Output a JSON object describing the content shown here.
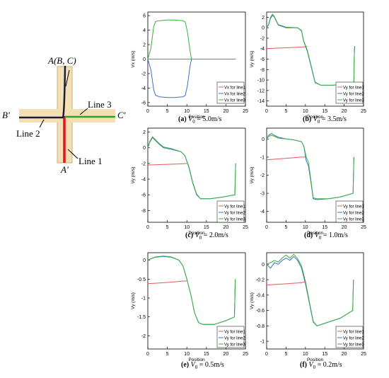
{
  "diagram": {
    "labels": {
      "top": "A(B, C)",
      "left": "B'",
      "right": "C'",
      "bottom": "A'",
      "line1": "Line 1",
      "line2": "Line 2",
      "line3": "Line 3"
    },
    "colors": {
      "channel": "#f2dfb4",
      "channel_border": "#c9b27d",
      "line1": "#e8141b",
      "line2": "#1b1b3a",
      "line3": "#2aa52a"
    }
  },
  "captions": [
    {
      "letter": "(a)",
      "v": "V",
      "sub": "0",
      "rest": " = 5.0m/s"
    },
    {
      "letter": "(b)",
      "v": "V",
      "sub": "0",
      "rest": " = 3.5m/s"
    },
    {
      "letter": "(c)",
      "v": "V",
      "sub": "0",
      "rest": " = 2.0m/s"
    },
    {
      "letter": "(d)",
      "v": "V",
      "sub": "0",
      "rest": " = 1.0m/s"
    },
    {
      "letter": "(e)",
      "v": "V",
      "sub": "0",
      "rest": " = 0.5m/s"
    },
    {
      "letter": "(f)",
      "v": "V",
      "sub": "0",
      "rest": " = 0.2m/s"
    }
  ],
  "series_colors": [
    "#e8585c",
    "#3a6fc9",
    "#3cae3c"
  ],
  "chart_data": [
    {
      "type": "line",
      "xlabel": "Position",
      "ylabel": "Vx (m/s)",
      "xlim": [
        0,
        25
      ],
      "ylim": [
        -6.5,
        6.5
      ],
      "xticks": [
        0,
        5,
        10,
        15,
        20,
        25
      ],
      "yticks": [
        -6,
        -4,
        -2,
        0,
        2,
        4,
        6
      ],
      "series": [
        {
          "name": "Vx for line1",
          "x": [
            0,
            22.5
          ],
          "y": [
            0,
            0
          ]
        },
        {
          "name": "Vx for line2",
          "x": [
            0,
            0.8,
            1.5,
            2,
            3,
            5,
            7,
            9,
            9.6,
            10.2,
            10.8,
            11.2
          ],
          "y": [
            0,
            -1.5,
            -4.2,
            -5.0,
            -5.2,
            -5.3,
            -5.3,
            -5.2,
            -5.0,
            -3.5,
            -1.0,
            0
          ]
        },
        {
          "name": "Vx for line3",
          "x": [
            0,
            0.8,
            1.5,
            2,
            3,
            5,
            7,
            9,
            9.6,
            10.2,
            10.8,
            11.2,
            22.5
          ],
          "y": [
            0,
            1.5,
            4.5,
            5.2,
            5.3,
            5.4,
            5.4,
            5.3,
            5.1,
            3.6,
            1.2,
            0,
            0
          ]
        }
      ]
    },
    {
      "type": "line",
      "xlabel": "Position",
      "ylabel": "Vy (m/s)",
      "xlim": [
        0,
        25
      ],
      "ylim": [
        -15,
        3
      ],
      "xticks": [
        0,
        5,
        10,
        15,
        20,
        25
      ],
      "yticks": [
        -14,
        -12,
        -10,
        -8,
        -6,
        -4,
        -2,
        0,
        2
      ],
      "series": [
        {
          "name": "Vy for line1",
          "x": [
            0,
            3,
            6,
            9,
            10.5
          ],
          "y": [
            -4.0,
            -3.9,
            -3.8,
            -3.7,
            -3.6
          ]
        },
        {
          "name": "Vy for line2",
          "x": [
            0,
            0.5,
            1,
            1.5,
            2,
            3,
            5,
            8,
            9,
            9.5,
            10.5,
            11.5,
            12.5,
            14,
            17,
            20,
            22.5,
            22.6,
            22.7
          ],
          "y": [
            0,
            0.5,
            1.8,
            2.4,
            2.0,
            0.5,
            0,
            0,
            -0.6,
            -2.5,
            -4.5,
            -7.5,
            -10.5,
            -11.0,
            -11.0,
            -10.8,
            -10.5,
            -6,
            -3.5
          ]
        },
        {
          "name": "Vy for line3",
          "x": [
            0,
            0.5,
            1,
            1.5,
            2,
            3,
            5,
            8,
            9,
            9.5,
            10.5,
            11.5,
            12.5,
            14,
            17,
            20,
            22.5,
            22.6,
            22.7
          ],
          "y": [
            0,
            0.6,
            2.0,
            2.6,
            2.1,
            0.6,
            0.1,
            0,
            -0.5,
            -2.4,
            -4.3,
            -7.3,
            -10.4,
            -11.0,
            -11.0,
            -10.8,
            -10.5,
            -6,
            -3.5
          ]
        }
      ]
    },
    {
      "type": "line",
      "xlabel": "Position",
      "ylabel": "Vy (m/s)",
      "xlim": [
        0,
        25
      ],
      "ylim": [
        -9.5,
        2.5
      ],
      "xticks": [
        0,
        5,
        10,
        15,
        20,
        25
      ],
      "yticks": [
        -8,
        -6,
        -4,
        -2,
        0,
        2
      ],
      "series": [
        {
          "name": "Vy for line1",
          "x": [
            0,
            3,
            6,
            9,
            10
          ],
          "y": [
            -2.2,
            -2.15,
            -2.1,
            -2.05,
            -2.0
          ]
        },
        {
          "name": "Vy for line2",
          "x": [
            0,
            0.5,
            1.2,
            2,
            3,
            4,
            6,
            8.5,
            9.5,
            10.5,
            11.5,
            12.5,
            13.5,
            16,
            19,
            22.3,
            22.4,
            22.5
          ],
          "y": [
            0,
            0.7,
            1.3,
            0.9,
            0.4,
            0,
            -0.2,
            -0.5,
            -1.0,
            -2.5,
            -4.5,
            -6.0,
            -6.5,
            -6.5,
            -6.3,
            -6.0,
            -4,
            -2
          ]
        },
        {
          "name": "Vy for line3",
          "x": [
            0,
            0.5,
            1.2,
            2,
            3,
            4,
            6,
            8.5,
            9.5,
            10.5,
            11.5,
            12.5,
            13.5,
            16,
            19,
            22.3,
            22.4,
            22.5
          ],
          "y": [
            0,
            0.8,
            1.4,
            1.0,
            0.5,
            0.1,
            -0.1,
            -0.5,
            -1.0,
            -2.4,
            -4.4,
            -5.9,
            -6.5,
            -6.5,
            -6.3,
            -6.0,
            -4,
            -2
          ]
        }
      ]
    },
    {
      "type": "line",
      "xlabel": "Position",
      "ylabel": "Vy (m/s)",
      "xlim": [
        0,
        25
      ],
      "ylim": [
        -4.6,
        0.6
      ],
      "xticks": [
        0,
        5,
        10,
        15,
        20,
        25
      ],
      "yticks": [
        -4,
        -3,
        -2,
        -1,
        0
      ],
      "series": [
        {
          "name": "Vy for line1",
          "x": [
            0,
            3,
            6,
            9,
            10
          ],
          "y": [
            -1.15,
            -1.1,
            -1.05,
            -1.0,
            -1.0
          ]
        },
        {
          "name": "Vy for line2",
          "x": [
            0,
            0.5,
            1.2,
            2,
            3,
            5,
            7,
            9,
            9.6,
            10.2,
            10.8,
            11.5,
            12,
            13,
            16,
            19,
            22.3,
            22.4,
            22.5
          ],
          "y": [
            0,
            0.2,
            0.3,
            0.2,
            0.1,
            0,
            -0.05,
            -0.15,
            -0.4,
            -1.2,
            -1.5,
            -2.5,
            -3.3,
            -3.35,
            -3.3,
            -3.2,
            -3.0,
            -2,
            -1
          ]
        },
        {
          "name": "Vy for line3",
          "x": [
            0,
            0.5,
            1.2,
            2,
            3,
            5,
            7,
            9,
            9.6,
            10.2,
            10.8,
            11.5,
            12,
            13,
            16,
            19,
            22.3,
            22.4,
            22.5
          ],
          "y": [
            0,
            0.15,
            0.2,
            0.15,
            0.05,
            0,
            -0.05,
            -0.15,
            -0.4,
            -1.0,
            -1.3,
            -2.4,
            -3.25,
            -3.3,
            -3.3,
            -3.2,
            -3.0,
            -2,
            -1
          ]
        }
      ]
    },
    {
      "type": "line",
      "xlabel": "Position",
      "ylabel": "Vy (m/s)",
      "xlim": [
        0,
        25
      ],
      "ylim": [
        -2.35,
        0.2
      ],
      "xticks": [
        0,
        5,
        10,
        15,
        20,
        25
      ],
      "yticks": [
        -2,
        -1.5,
        -1,
        -0.5,
        0
      ],
      "series": [
        {
          "name": "Vy for line1",
          "x": [
            0,
            3,
            6,
            9,
            10
          ],
          "y": [
            -0.62,
            -0.6,
            -0.58,
            -0.55,
            -0.55
          ]
        },
        {
          "name": "Vy for line2",
          "x": [
            0,
            1,
            2,
            4,
            6,
            8,
            9,
            10,
            11,
            12,
            13,
            14,
            17,
            20,
            22.2,
            22.3,
            22.4
          ],
          "y": [
            0,
            0.05,
            0.08,
            0.1,
            0.08,
            0,
            -0.15,
            -0.5,
            -0.9,
            -1.4,
            -1.65,
            -1.7,
            -1.7,
            -1.6,
            -1.5,
            -1.0,
            -0.5
          ]
        },
        {
          "name": "Vy for line3",
          "x": [
            0,
            1,
            2,
            4,
            6,
            8,
            9,
            10,
            11,
            12,
            13,
            14,
            17,
            20,
            22.2,
            22.3,
            22.4
          ],
          "y": [
            0,
            0.05,
            0.09,
            0.11,
            0.09,
            0,
            -0.15,
            -0.5,
            -0.9,
            -1.4,
            -1.65,
            -1.7,
            -1.7,
            -1.6,
            -1.5,
            -1.0,
            -0.5
          ]
        }
      ]
    },
    {
      "type": "line",
      "xlabel": "Position",
      "ylabel": "Vy (m/s)",
      "xlim": [
        0,
        25
      ],
      "ylim": [
        -1.1,
        0.15
      ],
      "xticks": [
        0,
        5,
        10,
        15,
        20,
        25
      ],
      "yticks": [
        -1,
        -0.8,
        -0.6,
        -0.4,
        -0.2,
        0
      ],
      "series": [
        {
          "name": "Vy for line1",
          "x": [
            0,
            3,
            6,
            9,
            10
          ],
          "y": [
            -0.27,
            -0.26,
            -0.25,
            -0.24,
            -0.23
          ]
        },
        {
          "name": "Vy for line2",
          "x": [
            0,
            1,
            2,
            3,
            4,
            5,
            6,
            7,
            8,
            9,
            10,
            11,
            12,
            13,
            16,
            19,
            22.2,
            22.3,
            22.4
          ],
          "y": [
            0,
            -0.05,
            0.02,
            0,
            0.05,
            0.08,
            0.05,
            0.1,
            0.05,
            -0.05,
            -0.25,
            -0.5,
            -0.75,
            -0.8,
            -0.75,
            -0.7,
            -0.6,
            -0.4,
            -0.2
          ]
        },
        {
          "name": "Vy for line3",
          "x": [
            0,
            1,
            2,
            3,
            4,
            5,
            6,
            7,
            8,
            9,
            10,
            11,
            12,
            13,
            16,
            19,
            22.2,
            22.3,
            22.4
          ],
          "y": [
            0,
            0.02,
            0.05,
            0.03,
            0.08,
            0.12,
            0.08,
            0.13,
            0.07,
            -0.02,
            -0.22,
            -0.48,
            -0.74,
            -0.8,
            -0.75,
            -0.7,
            -0.6,
            -0.4,
            -0.2
          ]
        }
      ]
    }
  ]
}
